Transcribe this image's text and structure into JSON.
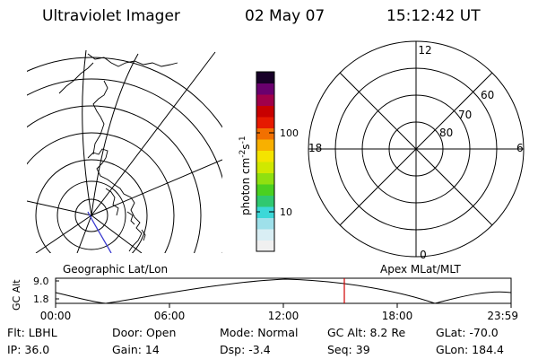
{
  "header": {
    "instrument": "Ultraviolet Imager",
    "date": "02 May 07",
    "time": "15:12:42 UT"
  },
  "colorbar": {
    "ticks": [
      "100",
      "10"
    ],
    "unit_main": "photon cm",
    "unit_exp1": "-2",
    "unit_mid": "s",
    "unit_exp2": "-1",
    "colors": [
      "#f0f0f0",
      "#d9eef4",
      "#9ee0ea",
      "#3cd8d8",
      "#30c870",
      "#4ad020",
      "#8fe010",
      "#d0e800",
      "#f4e400",
      "#f8b000",
      "#f27000",
      "#e61a00",
      "#c80000",
      "#a0004a",
      "#6a006e",
      "#180028"
    ]
  },
  "polar_plot": {
    "mlt_labels": {
      "top": "12",
      "left": "18",
      "right": "6",
      "bottom": "0"
    },
    "lat_labels": [
      "60",
      "70",
      "80"
    ]
  },
  "timeline": {
    "y_axis_label": "GC Alt",
    "y_ticks": [
      "9.0",
      "1.8"
    ],
    "left_caption": "Geographic Lat/Lon",
    "right_caption": "Apex MLat/MLT",
    "x_ticks": [
      "00:00",
      "06:00",
      "12:00",
      "18:00",
      "23:59"
    ],
    "marker_time": "15:12"
  },
  "info": {
    "filter": "Flt: LBHL",
    "ip": "IP: 36.0",
    "door": "Door: Open",
    "gain": "Gain: 14",
    "mode": "Mode: Normal",
    "dsp": "Dsp:   -3.4",
    "gc_alt": "GC Alt: 8.2 Re",
    "seq": "Seq: 39",
    "glat": "GLat: -70.0",
    "glon": "GLon: 184.4"
  }
}
